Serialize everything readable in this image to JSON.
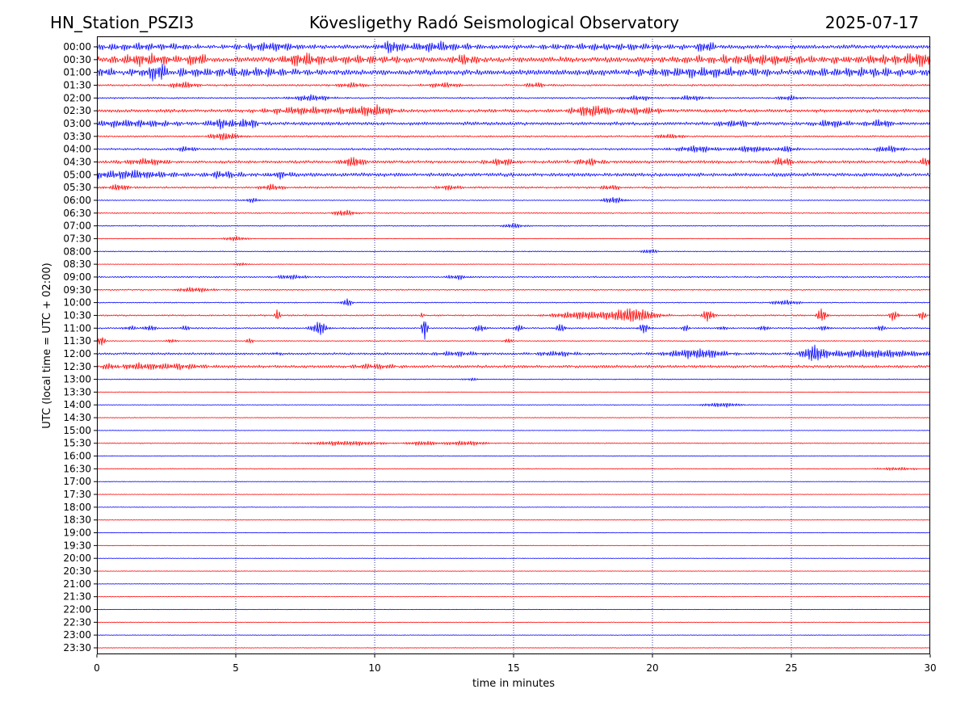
{
  "header": {
    "station": "HN_Station_PSZI3",
    "observatory": "Kövesligethy Radó Seismological Observatory",
    "date": "2025-07-17"
  },
  "colors": {
    "even_trace": "#0000ff",
    "odd_trace": "#ff0000",
    "grid": "#00008b"
  },
  "chart_data": {
    "type": "line",
    "title": "Kövesligethy Radó Seismological Observatory",
    "xlabel": "time in minutes",
    "ylabel": "UTC (local time = UTC + 02:00)",
    "xlim": [
      0,
      30
    ],
    "x_ticks": [
      0,
      5,
      10,
      15,
      20,
      25,
      30
    ],
    "x_tick_labels": [
      "0",
      "5",
      "10",
      "15",
      "20",
      "25",
      "30"
    ],
    "vertical_grid": [
      5,
      10,
      15,
      20,
      25
    ],
    "grid_style": "dotted",
    "row_labels": [
      "00:00",
      "00:30",
      "01:00",
      "01:30",
      "02:00",
      "02:30",
      "03:00",
      "03:30",
      "04:00",
      "04:30",
      "05:00",
      "05:30",
      "06:00",
      "06:30",
      "07:00",
      "07:30",
      "08:00",
      "08:30",
      "09:00",
      "09:30",
      "10:00",
      "10:30",
      "11:00",
      "11:30",
      "12:00",
      "12:30",
      "13:00",
      "13:30",
      "14:00",
      "14:30",
      "15:00",
      "15:30",
      "16:00",
      "16:30",
      "17:00",
      "17:30",
      "18:00",
      "18:30",
      "19:00",
      "19:30",
      "20:00",
      "20:30",
      "21:00",
      "21:30",
      "22:00",
      "22:30",
      "23:00",
      "23:30"
    ],
    "rows": [
      {
        "noise": 2.2,
        "events": [
          [
            1.5,
            5,
            1.2
          ],
          [
            2.3,
            4,
            1
          ],
          [
            6.2,
            5,
            0.8
          ],
          [
            10.6,
            7,
            0.3
          ],
          [
            12.2,
            5,
            1
          ],
          [
            18.5,
            3,
            2
          ],
          [
            21.9,
            6,
            0.3
          ]
        ]
      },
      {
        "noise": 3.0,
        "events": [
          [
            1.8,
            6,
            0.8
          ],
          [
            3.6,
            6,
            0.3
          ],
          [
            7.4,
            7,
            0.5
          ],
          [
            9.5,
            4,
            1
          ],
          [
            13.2,
            6,
            0.3
          ],
          [
            24.5,
            6,
            2
          ],
          [
            27.5,
            5,
            2
          ],
          [
            29.8,
            6,
            0.5
          ]
        ]
      },
      {
        "noise": 3.0,
        "events": [
          [
            0.4,
            8,
            0.6
          ],
          [
            1.5,
            6,
            1.5
          ],
          [
            2.2,
            16,
            0.3
          ],
          [
            2.9,
            4,
            1
          ],
          [
            5.6,
            4,
            1.5
          ],
          [
            22,
            5,
            2
          ],
          [
            27.3,
            4,
            2
          ]
        ]
      },
      {
        "noise": 1.0,
        "events": [
          [
            3.1,
            4,
            0.4
          ],
          [
            9.2,
            3,
            0.4
          ],
          [
            12.5,
            3,
            0.5
          ],
          [
            15.8,
            3,
            0.3
          ]
        ]
      },
      {
        "noise": 0.9,
        "events": [
          [
            7.7,
            4,
            0.5
          ],
          [
            19.5,
            3,
            0.4
          ],
          [
            21.4,
            3,
            0.4
          ],
          [
            24.9,
            3,
            0.3
          ]
        ]
      },
      {
        "noise": 1.8,
        "events": [
          [
            7.6,
            4,
            1.2
          ],
          [
            9.9,
            6,
            0.6
          ],
          [
            17.8,
            7,
            0.5
          ],
          [
            19.6,
            4,
            0.6
          ]
        ]
      },
      {
        "noise": 1.8,
        "events": [
          [
            1.2,
            4,
            1.2
          ],
          [
            4.6,
            6,
            0.5
          ],
          [
            5.4,
            7,
            0.3
          ],
          [
            23,
            4,
            0.5
          ],
          [
            26.5,
            4,
            0.5
          ],
          [
            28.2,
            4,
            0.4
          ]
        ]
      },
      {
        "noise": 0.9,
        "events": [
          [
            4.6,
            5,
            0.4
          ],
          [
            20.6,
            3,
            0.4
          ]
        ]
      },
      {
        "noise": 1.1,
        "events": [
          [
            3.2,
            3,
            0.3
          ],
          [
            21.6,
            4,
            0.6
          ],
          [
            23.6,
            4,
            0.5
          ],
          [
            24.8,
            4,
            0.3
          ],
          [
            28.5,
            4,
            0.4
          ]
        ]
      },
      {
        "noise": 1.6,
        "events": [
          [
            1.8,
            4,
            0.6
          ],
          [
            9.2,
            6,
            0.3
          ],
          [
            14.6,
            4,
            0.4
          ],
          [
            17.7,
            4,
            0.4
          ],
          [
            24.7,
            5,
            0.3
          ],
          [
            29.9,
            5,
            0.2
          ]
        ]
      },
      {
        "noise": 2.0,
        "events": [
          [
            1.1,
            5,
            1.2
          ],
          [
            4.5,
            4,
            0.5
          ],
          [
            6.6,
            4,
            0.3
          ]
        ]
      },
      {
        "noise": 1.0,
        "events": [
          [
            0.8,
            4,
            0.3
          ],
          [
            6.3,
            4,
            0.3
          ],
          [
            12.7,
            3,
            0.3
          ],
          [
            18.5,
            3,
            0.3
          ]
        ]
      },
      {
        "noise": 0.5,
        "events": [
          [
            5.6,
            3,
            0.2
          ],
          [
            18.6,
            4,
            0.3
          ]
        ]
      },
      {
        "noise": 0.6,
        "events": [
          [
            8.9,
            4,
            0.3
          ]
        ]
      },
      {
        "noise": 0.6,
        "events": [
          [
            15,
            3,
            0.3
          ]
        ]
      },
      {
        "noise": 0.4,
        "events": [
          [
            5,
            3,
            0.3
          ]
        ]
      },
      {
        "noise": 0.5,
        "events": [
          [
            19.9,
            3,
            0.2
          ]
        ]
      },
      {
        "noise": 0.3,
        "events": [
          [
            5.2,
            2,
            0.2
          ]
        ]
      },
      {
        "noise": 0.8,
        "events": [
          [
            7,
            3,
            0.4
          ],
          [
            13,
            3,
            0.3
          ]
        ]
      },
      {
        "noise": 0.7,
        "events": [
          [
            3.5,
            3,
            0.5
          ]
        ]
      },
      {
        "noise": 0.6,
        "events": [
          [
            9,
            5,
            0.15
          ],
          [
            24.8,
            3,
            0.4
          ]
        ]
      },
      {
        "noise": 0.8,
        "events": [
          [
            6.5,
            7,
            0.08
          ],
          [
            11.7,
            3,
            0.05
          ],
          [
            17.5,
            5,
            0.8
          ],
          [
            19.3,
            9,
            0.6
          ],
          [
            22,
            8,
            0.15
          ],
          [
            26.1,
            9,
            0.12
          ],
          [
            28.7,
            7,
            0.12
          ],
          [
            29.7,
            5,
            0.12
          ]
        ]
      },
      {
        "noise": 0.8,
        "events": [
          [
            1.2,
            3,
            0.15
          ],
          [
            1.9,
            4,
            0.15
          ],
          [
            3.2,
            3,
            0.15
          ],
          [
            8,
            9,
            0.2
          ],
          [
            11.8,
            14,
            0.08
          ],
          [
            13.8,
            5,
            0.15
          ],
          [
            15.2,
            4,
            0.15
          ],
          [
            16.7,
            5,
            0.15
          ],
          [
            19.7,
            6,
            0.15
          ],
          [
            21.2,
            4,
            0.12
          ],
          [
            22.5,
            3,
            0.12
          ],
          [
            24,
            4,
            0.12
          ],
          [
            26.2,
            4,
            0.12
          ],
          [
            28.2,
            4,
            0.12
          ]
        ]
      },
      {
        "noise": 0.5,
        "events": [
          [
            0.15,
            7,
            0.1
          ],
          [
            2.7,
            3,
            0.12
          ],
          [
            5.5,
            3,
            0.12
          ],
          [
            14.8,
            3,
            0.12
          ]
        ]
      },
      {
        "noise": 1.2,
        "events": [
          [
            6.5,
            3,
            0.1
          ],
          [
            13,
            3,
            0.6
          ],
          [
            16.6,
            3,
            0.6
          ],
          [
            21.6,
            6,
            0.8
          ],
          [
            25.8,
            9,
            0.3
          ],
          [
            28,
            5,
            1.5
          ]
        ]
      },
      {
        "noise": 1.5,
        "events": [
          [
            0.5,
            6,
            0.3
          ],
          [
            1.5,
            4,
            1
          ],
          [
            3.1,
            3,
            0.6
          ],
          [
            10,
            3,
            0.6
          ]
        ]
      },
      {
        "noise": 0.5,
        "events": [
          [
            13.5,
            2,
            0.2
          ]
        ]
      },
      {
        "noise": 0.3,
        "events": []
      },
      {
        "noise": 0.4,
        "events": [
          [
            22.5,
            3,
            0.5
          ]
        ]
      },
      {
        "noise": 0.4,
        "events": []
      },
      {
        "noise": 0.3,
        "events": []
      },
      {
        "noise": 0.5,
        "events": [
          [
            9,
            3,
            1
          ],
          [
            11.8,
            3,
            0.5
          ],
          [
            13.2,
            3,
            0.6
          ]
        ]
      },
      {
        "noise": 0.4,
        "events": []
      },
      {
        "noise": 0.5,
        "events": [
          [
            28.8,
            2,
            0.5
          ]
        ]
      },
      {
        "noise": 0.3,
        "events": []
      },
      {
        "noise": 0.3,
        "events": []
      },
      {
        "noise": 0.3,
        "events": []
      },
      {
        "noise": 0.3,
        "events": []
      },
      {
        "noise": 0.3,
        "events": []
      },
      {
        "noise": 0.3,
        "events": []
      },
      {
        "noise": 0.3,
        "events": []
      },
      {
        "noise": 0.3,
        "events": []
      },
      {
        "noise": 0.3,
        "events": []
      },
      {
        "noise": 0.3,
        "events": []
      },
      {
        "noise": 0.3,
        "events": []
      },
      {
        "noise": 0.3,
        "events": []
      },
      {
        "noise": 0.3,
        "events": []
      },
      {
        "noise": 0.3,
        "events": []
      }
    ]
  }
}
